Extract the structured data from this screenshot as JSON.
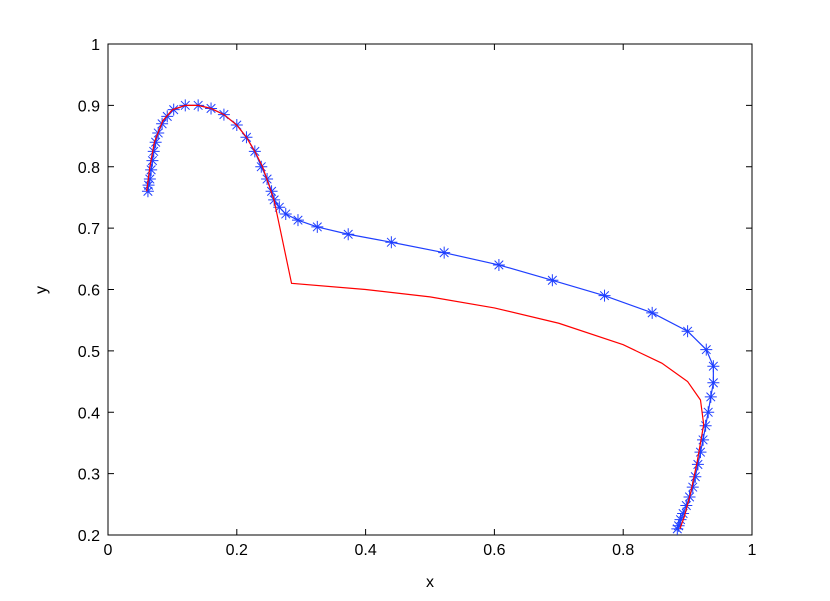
{
  "chart_data": {
    "type": "line",
    "x_label": "x",
    "y_label": "y",
    "xlim": [
      0,
      1
    ],
    "ylim": [
      0.2,
      1
    ],
    "xticks": [
      0,
      0.2,
      0.4,
      0.6,
      0.8,
      1
    ],
    "yticks": [
      0.2,
      0.3,
      0.4,
      0.5,
      0.6,
      0.7,
      0.8,
      0.9,
      1
    ],
    "grid": false,
    "series": [
      {
        "color": "#1f3fff",
        "marker": "asterisk",
        "x": [
          0.062,
          0.063,
          0.065,
          0.067,
          0.069,
          0.071,
          0.074,
          0.078,
          0.084,
          0.092,
          0.102,
          0.12,
          0.14,
          0.16,
          0.18,
          0.2,
          0.215,
          0.228,
          0.238,
          0.247,
          0.254,
          0.258,
          0.266,
          0.276,
          0.295,
          0.325,
          0.373,
          0.44,
          0.522,
          0.607,
          0.69,
          0.771,
          0.845,
          0.9,
          0.929,
          0.94,
          0.94,
          0.936,
          0.932,
          0.928,
          0.924,
          0.92,
          0.916,
          0.912,
          0.908,
          0.903,
          0.898,
          0.893,
          0.889,
          0.886,
          0.884
        ],
        "values": [
          0.76,
          0.77,
          0.78,
          0.795,
          0.81,
          0.825,
          0.84,
          0.855,
          0.87,
          0.882,
          0.893,
          0.9,
          0.9,
          0.895,
          0.885,
          0.868,
          0.848,
          0.825,
          0.8,
          0.78,
          0.76,
          0.746,
          0.734,
          0.723,
          0.713,
          0.702,
          0.69,
          0.677,
          0.66,
          0.64,
          0.615,
          0.59,
          0.562,
          0.532,
          0.502,
          0.475,
          0.448,
          0.425,
          0.4,
          0.378,
          0.355,
          0.335,
          0.315,
          0.295,
          0.278,
          0.262,
          0.248,
          0.235,
          0.225,
          0.215,
          0.21
        ]
      },
      {
        "color": "#ff0000",
        "marker": "none",
        "x": [
          0.06,
          0.065,
          0.072,
          0.085,
          0.1,
          0.12,
          0.14,
          0.16,
          0.18,
          0.2,
          0.215,
          0.228,
          0.24,
          0.25,
          0.258,
          0.285,
          0.4,
          0.5,
          0.6,
          0.7,
          0.8,
          0.86,
          0.9,
          0.92,
          0.925,
          0.915,
          0.905,
          0.895,
          0.888
        ],
        "values": [
          0.76,
          0.8,
          0.84,
          0.875,
          0.893,
          0.9,
          0.9,
          0.895,
          0.885,
          0.868,
          0.848,
          0.825,
          0.8,
          0.77,
          0.745,
          0.61,
          0.6,
          0.588,
          0.57,
          0.545,
          0.51,
          0.48,
          0.45,
          0.42,
          0.38,
          0.32,
          0.27,
          0.23,
          0.21
        ]
      }
    ]
  }
}
